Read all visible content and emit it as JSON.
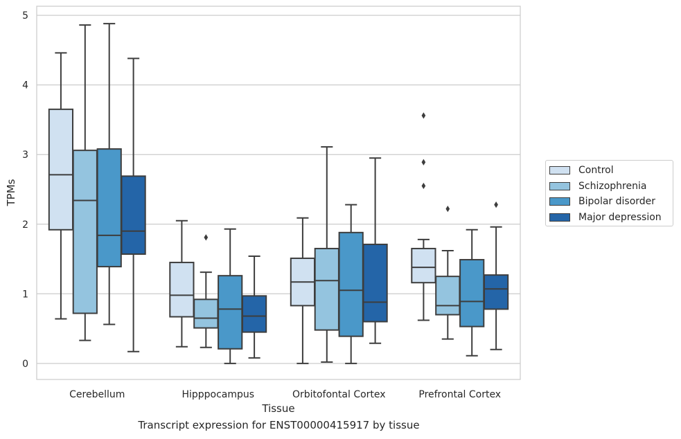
{
  "chart_data": {
    "type": "box",
    "title": "Transcript expression for ENST00000415917 by tissue",
    "xlabel": "Tissue",
    "ylabel": "TPMs",
    "ylim": [
      -0.23,
      5.13
    ],
    "yticks": [
      0,
      1,
      2,
      3,
      4,
      5
    ],
    "grid": "horizontal",
    "legend_position": "right",
    "categories": [
      "Cerebellum",
      "Hipppocampus",
      "Orbitofontal Cortex",
      "Prefrontal Cortex"
    ],
    "series": [
      {
        "name": "Control",
        "color": "#d0e1f1",
        "boxes": [
          {
            "whislo": 0.64,
            "q1": 1.92,
            "med": 2.71,
            "q3": 3.65,
            "whishi": 4.46,
            "fliers": []
          },
          {
            "whislo": 0.24,
            "q1": 0.67,
            "med": 0.98,
            "q3": 1.45,
            "whishi": 2.05,
            "fliers": []
          },
          {
            "whislo": 0.0,
            "q1": 0.83,
            "med": 1.17,
            "q3": 1.51,
            "whishi": 2.09,
            "fliers": []
          },
          {
            "whislo": 0.62,
            "q1": 1.16,
            "med": 1.38,
            "q3": 1.65,
            "whishi": 1.78,
            "fliers": [
              2.55,
              2.89,
              3.56
            ]
          }
        ]
      },
      {
        "name": "Schizophrenia",
        "color": "#94c4df",
        "boxes": [
          {
            "whislo": 0.33,
            "q1": 0.72,
            "med": 2.34,
            "q3": 3.06,
            "whishi": 4.86,
            "fliers": []
          },
          {
            "whislo": 0.23,
            "q1": 0.51,
            "med": 0.65,
            "q3": 0.92,
            "whishi": 1.31,
            "fliers": [
              1.81
            ]
          },
          {
            "whislo": 0.02,
            "q1": 0.48,
            "med": 1.19,
            "q3": 1.65,
            "whishi": 3.11,
            "fliers": []
          },
          {
            "whislo": 0.35,
            "q1": 0.7,
            "med": 0.83,
            "q3": 1.25,
            "whishi": 1.62,
            "fliers": [
              2.22
            ]
          }
        ]
      },
      {
        "name": "Bipolar disorder",
        "color": "#4a98c9",
        "boxes": [
          {
            "whislo": 0.56,
            "q1": 1.39,
            "med": 1.84,
            "q3": 3.08,
            "whishi": 4.88,
            "fliers": []
          },
          {
            "whislo": 0.0,
            "q1": 0.21,
            "med": 0.78,
            "q3": 1.26,
            "whishi": 1.93,
            "fliers": []
          },
          {
            "whislo": 0.0,
            "q1": 0.39,
            "med": 1.05,
            "q3": 1.88,
            "whishi": 2.28,
            "fliers": []
          },
          {
            "whislo": 0.11,
            "q1": 0.53,
            "med": 0.89,
            "q3": 1.49,
            "whishi": 1.92,
            "fliers": []
          }
        ]
      },
      {
        "name": "Major depression",
        "color": "#2465a8",
        "boxes": [
          {
            "whislo": 0.17,
            "q1": 1.57,
            "med": 1.9,
            "q3": 2.69,
            "whishi": 4.38,
            "fliers": []
          },
          {
            "whislo": 0.08,
            "q1": 0.45,
            "med": 0.68,
            "q3": 0.97,
            "whishi": 1.54,
            "fliers": []
          },
          {
            "whislo": 0.29,
            "q1": 0.6,
            "med": 0.88,
            "q3": 1.71,
            "whishi": 2.95,
            "fliers": []
          },
          {
            "whislo": 0.2,
            "q1": 0.78,
            "med": 1.07,
            "q3": 1.27,
            "whishi": 1.96,
            "fliers": [
              2.28
            ]
          }
        ]
      }
    ]
  }
}
